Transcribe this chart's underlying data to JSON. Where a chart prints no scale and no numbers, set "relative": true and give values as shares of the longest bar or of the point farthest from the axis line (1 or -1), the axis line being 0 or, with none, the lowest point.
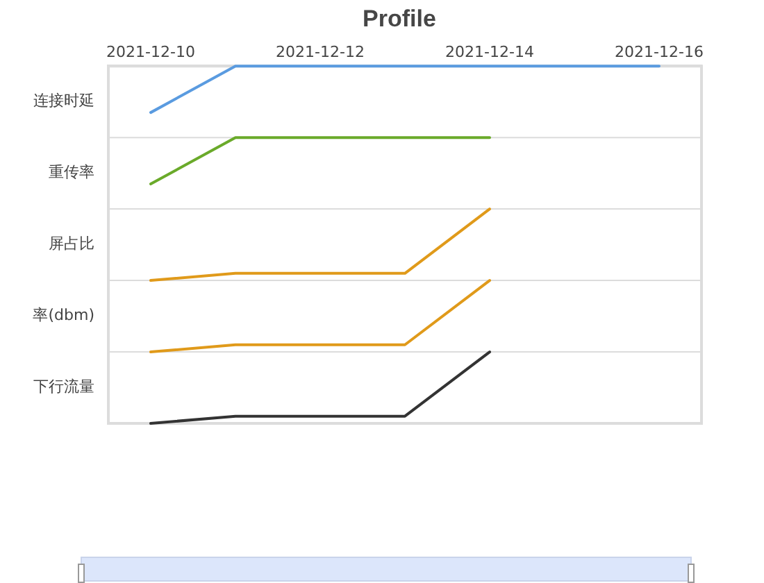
{
  "chart_data": {
    "type": "line",
    "title": "Profile",
    "relative": true,
    "x": [
      "2021-12-10",
      "2021-12-11",
      "2021-12-12",
      "2021-12-13",
      "2021-12-14",
      "2021-12-15",
      "2021-12-16"
    ],
    "series": [
      {
        "color": "#5a9be0",
        "values": [
          0.87,
          1,
          1,
          1,
          1,
          1,
          1
        ]
      },
      {
        "color": "#6aaa2a",
        "values": [
          0.67,
          0.8,
          0.8,
          0.8,
          0.8,
          null,
          null
        ]
      },
      {
        "color": "#e09a1a",
        "values": [
          0.4,
          0.42,
          0.42,
          0.42,
          0.6,
          null,
          null
        ]
      },
      {
        "color": "#e09a1a",
        "values": [
          0.2,
          0.22,
          0.22,
          0.22,
          0.4,
          null,
          null
        ]
      },
      {
        "color": "#333333",
        "values": [
          0,
          0.02,
          0.02,
          0.02,
          0.2,
          null,
          null
        ]
      }
    ],
    "annotations": [
      "连接时延",
      "重传率",
      "屏占比",
      "率(dbm)",
      "下行流量"
    ],
    "xlim": [
      "2021-12-09T12:00",
      "2021-12-16T12:00"
    ],
    "xticks": [
      "2021-12-10",
      "2021-12-12",
      "2021-12-14",
      "2021-12-16"
    ],
    "grid": "y",
    "legend": false,
    "marker": "none",
    "line_style": "solid"
  }
}
